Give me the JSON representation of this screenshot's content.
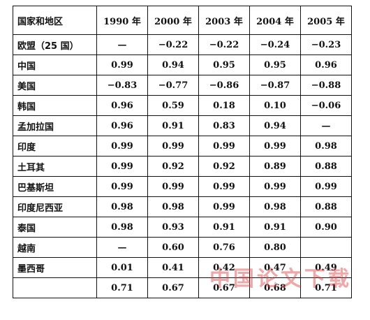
{
  "table": {
    "header": [
      "国家和地区",
      "1990 年",
      "2000 年",
      "2003 年",
      "2004 年",
      "2005 年"
    ],
    "rows": [
      [
        "欧盟（25 国）",
        "—",
        "−0.22",
        "−0.22",
        "−0.24",
        "−0.23"
      ],
      [
        "中国",
        "0.99",
        "0.94",
        "0.95",
        "0.95",
        "0.96"
      ],
      [
        "美国",
        "−0.83",
        "−0.77",
        "−0.86",
        "−0.87",
        "−0.88"
      ],
      [
        "韩国",
        "0.96",
        "0.59",
        "0.18",
        "0.10",
        "−0.06"
      ],
      [
        "孟加拉国",
        "0.96",
        "0.91",
        "0.83",
        "0.94",
        "—"
      ],
      [
        "印度",
        "0.99",
        "0.99",
        "0.99",
        "0.99",
        "0.98"
      ],
      [
        "土耳其",
        "0.99",
        "0.92",
        "0.92",
        "0.89",
        "0.88"
      ],
      [
        "巴基斯坦",
        "0.99",
        "0.99",
        "0.99",
        "0.99",
        "0.99"
      ],
      [
        "印度尼西亚",
        "0.98",
        "0.98",
        "0.99",
        "0.98",
        "0.88"
      ],
      [
        "泰国",
        "0.98",
        "0.93",
        "0.91",
        "0.91",
        "0.90"
      ],
      [
        "越南",
        "—",
        "0.60",
        "0.76",
        "0.80",
        null
      ],
      [
        "墨西哥",
        "0.01",
        "0.41",
        "0.42",
        "0.47",
        "0.49"
      ],
      [
        null,
        "0.71",
        "0.67",
        "0.67",
        "0.68",
        "0.71"
      ]
    ]
  },
  "watermark": "中国论文下载"
}
